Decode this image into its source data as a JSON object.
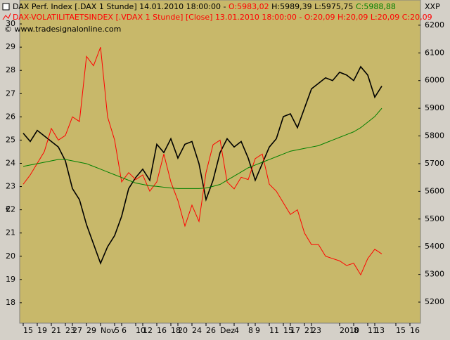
{
  "chart_data": {
    "type": "line",
    "header": {
      "line1": [
        "14.01.2010 18:00:00 -",
        "O:5983,02",
        "H:5989,39 L:5975,75",
        "C:5988,88"
      ],
      "line2": [
        "13.01.2010 18:00:00 - O:20,09 H:20,09 L:20,09 C:20,09"
      ],
      "copyright": "© www.tradesignalonline.com"
    },
    "left_unit": "€",
    "right_unit": "XXP",
    "categories": [
      "15",
      null,
      "19",
      null,
      "21",
      null,
      "23",
      "27",
      null,
      "29",
      null,
      "Nov",
      null,
      "5",
      "6",
      null,
      "10",
      "12",
      null,
      "16",
      null,
      "18",
      "20",
      null,
      "24",
      null,
      "26",
      null,
      "Dez",
      null,
      "4",
      null,
      "8",
      "9",
      null,
      "11",
      null,
      "15",
      "17",
      null,
      "21",
      "23",
      null,
      null,
      null,
      "2010",
      null,
      "8",
      null,
      "11",
      "13",
      null,
      null,
      "15",
      null,
      "16",
      null
    ],
    "series": [
      {
        "name": "DAX Perf. Index [.DAX  1 Stunde]",
        "color": "#000000",
        "axis": "y2",
        "values": [
          5810,
          5780,
          5820,
          5800,
          5780,
          5760,
          5710,
          5610,
          5570,
          5480,
          5410,
          5340,
          5400,
          5440,
          5510,
          5610,
          5650,
          5680,
          5640,
          5770,
          5740,
          5790,
          5720,
          5770,
          5780,
          5700,
          5570,
          5640,
          5740,
          5790,
          5760,
          5780,
          5720,
          5640,
          5700,
          5760,
          5790,
          5870,
          5880,
          5830,
          5900,
          5970,
          5990,
          6010,
          6000,
          6030,
          6020,
          6000,
          6050,
          6020,
          5940,
          5980,
          null,
          null,
          null,
          null,
          null
        ]
      },
      {
        "name": "DAX-VOLATILITAETSINDEX [.VDAX  1 Stunde] [Close]",
        "color": "#ff0000",
        "axis": "y",
        "values": [
          23.1,
          23.5,
          24,
          24.5,
          25.5,
          25,
          25.2,
          26,
          25.8,
          28.6,
          28.2,
          29,
          26,
          25,
          23.2,
          23.6,
          23.3,
          23.5,
          22.8,
          23.2,
          24.4,
          23.2,
          22.4,
          21.3,
          22.2,
          21.5,
          23.6,
          24.8,
          25,
          23.2,
          22.9,
          23.4,
          23.3,
          24.2,
          24.4,
          23.1,
          22.8,
          22.3,
          21.8,
          22,
          21,
          20.5,
          20.5,
          20,
          19.9,
          19.8,
          19.6,
          19.7,
          19.2,
          19.9,
          20.3,
          20.1,
          null,
          null,
          null,
          null,
          null
        ]
      },
      {
        "color": "#008000",
        "axis": "y2",
        "values": [
          5690,
          5695,
          5700,
          5705,
          5710,
          5715,
          5715,
          5710,
          5705,
          5700,
          5690,
          5680,
          5670,
          5660,
          5650,
          5640,
          5630,
          5625,
          5620,
          5618,
          5615,
          5612,
          5610,
          5610,
          5610,
          5610,
          5612,
          5618,
          5625,
          5640,
          5655,
          5670,
          5685,
          5695,
          5705,
          5715,
          5725,
          5735,
          5745,
          5750,
          5755,
          5760,
          5765,
          5775,
          5785,
          5795,
          5805,
          5815,
          5830,
          5850,
          5870,
          5900,
          null,
          null,
          null,
          null,
          null
        ]
      }
    ],
    "ylim": [
      17.12,
      31.03
    ],
    "yticks": [
      18,
      19,
      20,
      21,
      22,
      23,
      24,
      25,
      26,
      27,
      28,
      29,
      30
    ],
    "y2lim": [
      5124,
      6291
    ],
    "y2ticks": [
      5200,
      5300,
      5400,
      5500,
      5600,
      5700,
      5800,
      5900,
      6000,
      6100,
      6200
    ]
  }
}
